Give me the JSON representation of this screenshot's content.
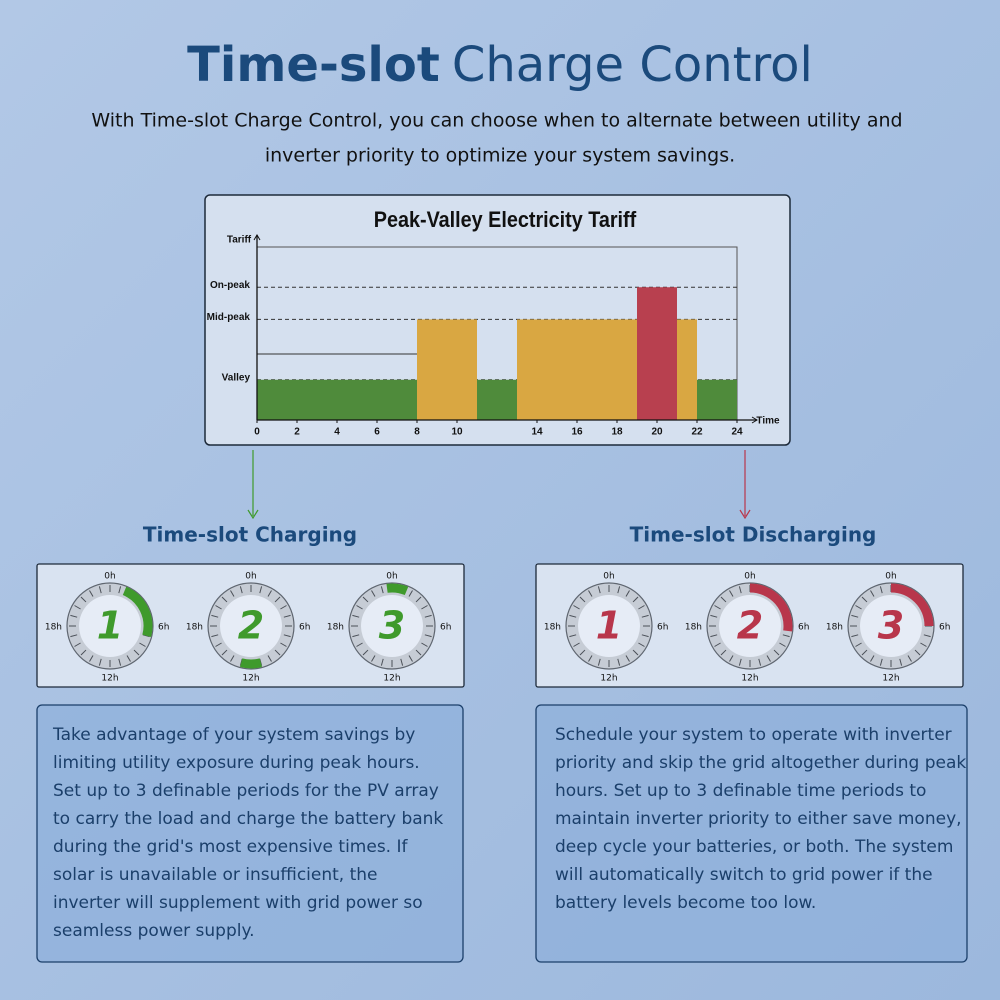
{
  "header": {
    "title_bold": "Time-slot",
    "title_rest": "Charge Control",
    "subtitle_lines": [
      "With Time-slot Charge Control, you can choose when to alternate between utility and",
      "inverter priority to optimize your system savings."
    ]
  },
  "tariff_chart": {
    "type": "step-bar",
    "title": "Peak-Valley Electricity Tariff",
    "y_label": "Tariff",
    "x_label": "Time",
    "xlim": [
      0,
      24
    ],
    "xticks": [
      0,
      2,
      4,
      6,
      8,
      10,
      14,
      16,
      18,
      20,
      22,
      24
    ],
    "ylim": [
      0,
      4.3
    ],
    "yticks": [
      {
        "value": 1,
        "label": "Valley"
      },
      {
        "value": 2.5,
        "label": "Mid-peak"
      },
      {
        "value": 3.3,
        "label": "On-peak"
      }
    ],
    "segments": [
      {
        "start": 0,
        "end": 8,
        "level": 1,
        "color": "#4f8b3b"
      },
      {
        "start": 8,
        "end": 11,
        "level": 2.5,
        "color": "#d9a742"
      },
      {
        "start": 11,
        "end": 13,
        "level": 1,
        "color": "#4f8b3b"
      },
      {
        "start": 13,
        "end": 19,
        "level": 2.5,
        "color": "#d9a742"
      },
      {
        "start": 19,
        "end": 21,
        "level": 3.3,
        "color": "#b8404f"
      },
      {
        "start": 21,
        "end": 22,
        "level": 2.5,
        "color": "#d9a742"
      },
      {
        "start": 22,
        "end": 24,
        "level": 1,
        "color": "#4f8b3b"
      }
    ]
  },
  "dial_labels": [
    "0h",
    "6h",
    "12h",
    "18h"
  ],
  "sections": [
    {
      "title": "Time-slot Charging",
      "color": "#3f9a2c",
      "slots": [
        {
          "label": "1",
          "start": 1.5,
          "end": 7
        },
        {
          "label": "2",
          "start": 11,
          "end": 13
        },
        {
          "label": "3",
          "start": 23.5,
          "end": 1.5
        }
      ],
      "description_lines": [
        "Take advantage of your system savings by",
        "limiting utility exposure during peak hours.",
        "Set up to 3 definable periods for the PV array",
        "to carry the load and charge the battery bank",
        "during the grid's most expensive times. If",
        "solar is unavailable or insufficient, the",
        "inverter will supplement with grid power so",
        "seamless power supply."
      ]
    },
    {
      "title": "Time-slot Discharging",
      "color": "#b8364b",
      "slots": [
        {
          "label": "1"
        },
        {
          "label": "2",
          "start": 0,
          "end": 6.5
        },
        {
          "label": "3",
          "start": 0,
          "end": 6
        }
      ],
      "description_lines": [
        "Schedule your system to operate with inverter",
        "priority and skip the grid altogether during peak",
        "hours. Set up to 3 definable time periods to",
        "maintain inverter priority to either save money,",
        "deep cycle your batteries, or both. The system",
        "will automatically switch to grid power if the",
        "battery levels become too low."
      ]
    }
  ]
}
